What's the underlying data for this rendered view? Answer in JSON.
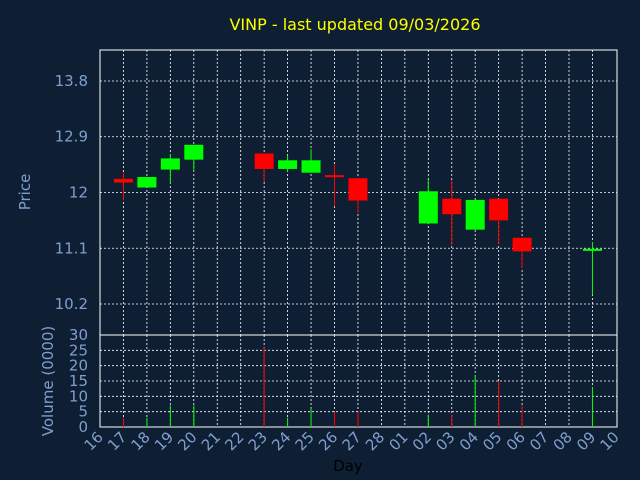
{
  "chart_data": {
    "type": "candlestick",
    "title": "VINP - last updated 09/03/2026",
    "xlabel": "Day",
    "price_axis": {
      "label": "Price",
      "ylim": [
        9.7,
        14.3
      ],
      "ticks": [
        "13.8",
        "12.9",
        "12",
        "11.1",
        "10.2"
      ]
    },
    "volume_axis": {
      "label": "Volume (0000)",
      "ylim": [
        0,
        30
      ],
      "ticks": [
        "30",
        "25",
        "20",
        "15",
        "10",
        "5",
        "0"
      ]
    },
    "grid": true,
    "colors": {
      "background": "#0f1f33",
      "up": "#00ff00",
      "down": "#ff0000",
      "grid": "#ffffff",
      "text": "#7f9fcf",
      "title": "#ffff00"
    },
    "x_ticks": [
      "16",
      "17",
      "18",
      "19",
      "20",
      "21",
      "22",
      "23",
      "24",
      "25",
      "26",
      "27",
      "28",
      "01",
      "02",
      "03",
      "04",
      "05",
      "06",
      "07",
      "08",
      "09",
      "10"
    ],
    "candles": [
      {
        "day": "17",
        "open": 12.22,
        "close": 12.16,
        "high": 12.32,
        "low": 11.88,
        "volume": 3
      },
      {
        "day": "18",
        "open": 12.08,
        "close": 12.25,
        "high": 12.25,
        "low": 12.08,
        "volume": 3
      },
      {
        "day": "19",
        "open": 12.37,
        "close": 12.55,
        "high": 12.62,
        "low": 12.15,
        "volume": 7
      },
      {
        "day": "20",
        "open": 12.53,
        "close": 12.77,
        "high": 12.77,
        "low": 12.35,
        "volume": 7
      },
      {
        "day": "23",
        "open": 12.63,
        "close": 12.38,
        "high": 12.63,
        "low": 12.17,
        "volume": 26
      },
      {
        "day": "24",
        "open": 12.38,
        "close": 12.52,
        "high": 12.6,
        "low": 12.33,
        "volume": 3
      },
      {
        "day": "25",
        "open": 12.32,
        "close": 12.52,
        "high": 12.7,
        "low": 12.32,
        "volume": 6
      },
      {
        "day": "26",
        "open": 12.28,
        "close": 12.25,
        "high": 12.45,
        "low": 11.78,
        "volume": 5
      },
      {
        "day": "27",
        "open": 12.23,
        "close": 11.87,
        "high": 12.23,
        "low": 11.67,
        "volume": 5
      },
      {
        "day": "02",
        "open": 11.5,
        "close": 12.02,
        "high": 12.2,
        "low": 11.5,
        "volume": 4
      },
      {
        "day": "03",
        "open": 11.9,
        "close": 11.65,
        "high": 12.2,
        "low": 11.15,
        "volume": 4
      },
      {
        "day": "04",
        "open": 11.4,
        "close": 11.88,
        "high": 11.88,
        "low": 11.4,
        "volume": 17
      },
      {
        "day": "05",
        "open": 11.9,
        "close": 11.55,
        "high": 11.9,
        "low": 11.17,
        "volume": 15
      },
      {
        "day": "06",
        "open": 11.27,
        "close": 11.05,
        "high": 11.27,
        "low": 10.78,
        "volume": 7
      },
      {
        "day": "09",
        "open": 11.07,
        "close": 11.09,
        "high": 11.2,
        "low": 10.35,
        "volume": 13
      }
    ]
  }
}
